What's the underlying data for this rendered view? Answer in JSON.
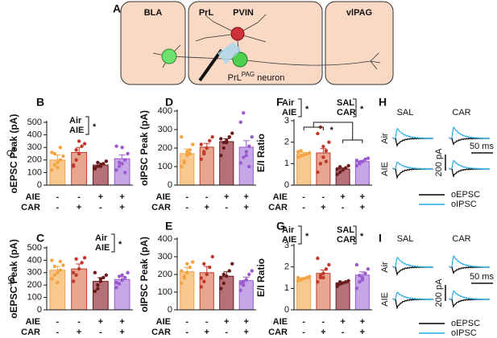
{
  "diagram": {
    "label": "A",
    "regions": [
      "BLA",
      "PrL",
      "vlPAG"
    ],
    "pvin": "PVIN",
    "neuron": "PrL",
    "neuron_sup": "PAG",
    "neuron_suffix": " neuron"
  },
  "sex_labels": [
    "♂",
    "♀"
  ],
  "chart_data": [
    {
      "type": "bar",
      "panel": "B",
      "ylabel": "oEPSC Peak (pA)",
      "ylim": [
        0,
        500
      ],
      "yticks": [
        0,
        100,
        200,
        300,
        400,
        500
      ],
      "rows": [
        {
          "name": "AIE",
          "signs": [
            "-",
            "-",
            "+",
            "+"
          ]
        },
        {
          "name": "CAR",
          "signs": [
            "-",
            "+",
            "-",
            "+"
          ]
        }
      ],
      "colors": [
        "#f8c98f",
        "#e8a58f",
        "#b5707a",
        "#c6a6e6"
      ],
      "point_colors": [
        "#f4a340",
        "#c0392b",
        "#6b1a1a",
        "#9b59d0"
      ],
      "values": [
        200,
        260,
        160,
        210
      ],
      "errors": [
        40,
        40,
        15,
        30
      ],
      "points": [
        [
          120,
          160,
          180,
          200,
          230,
          260,
          250,
          140,
          300
        ],
        [
          150,
          200,
          250,
          310,
          330,
          160,
          280,
          350
        ],
        [
          130,
          150,
          160,
          170,
          190,
          140,
          180,
          150
        ],
        [
          120,
          150,
          170,
          200,
          250,
          310,
          180,
          300,
          100
        ]
      ],
      "annotations": [
        {
          "lines": [
            "Air",
            "AIE"
          ],
          "mark": "*"
        }
      ]
    },
    {
      "type": "bar",
      "panel": "C",
      "ylabel": "oEPSC Peak (pA)",
      "ylim": [
        0,
        500
      ],
      "yticks": [
        0,
        100,
        200,
        300,
        400,
        500
      ],
      "rows": [
        {
          "name": "AIE",
          "signs": [
            "-",
            "-",
            "+",
            "+"
          ]
        },
        {
          "name": "CAR",
          "signs": [
            "-",
            "+",
            "-",
            "+"
          ]
        }
      ],
      "colors": [
        "#f8c98f",
        "#e8a58f",
        "#b5707a",
        "#c6a6e6"
      ],
      "point_colors": [
        "#f4a340",
        "#c0392b",
        "#6b1a1a",
        "#9b59d0"
      ],
      "values": [
        320,
        330,
        230,
        245
      ],
      "errors": [
        30,
        40,
        30,
        25
      ],
      "points": [
        [
          250,
          280,
          300,
          320,
          360,
          400,
          350,
          220,
          390
        ],
        [
          230,
          280,
          330,
          380,
          420,
          300,
          410
        ],
        [
          150,
          200,
          230,
          260,
          280,
          300,
          170,
          250
        ],
        [
          180,
          210,
          240,
          260,
          300,
          220,
          270,
          280
        ]
      ],
      "annotations": [
        {
          "lines": [
            "Air",
            "AIE"
          ],
          "mark": "*"
        }
      ]
    },
    {
      "type": "bar",
      "panel": "D",
      "ylabel": "oIPSC Peak (pA)",
      "ylim": [
        0,
        400
      ],
      "yticks": [
        0,
        100,
        200,
        300,
        400
      ],
      "rows": [
        {
          "name": "AIE",
          "signs": [
            "-",
            "-",
            "+",
            "+"
          ]
        },
        {
          "name": "CAR",
          "signs": [
            "-",
            "+",
            "-",
            "+"
          ]
        }
      ],
      "colors": [
        "#f8c98f",
        "#e8a58f",
        "#b5707a",
        "#c6a6e6"
      ],
      "point_colors": [
        "#f4a340",
        "#c0392b",
        "#6b1a1a",
        "#9b59d0"
      ],
      "values": [
        170,
        205,
        235,
        205
      ],
      "errors": [
        25,
        20,
        15,
        35
      ],
      "points": [
        [
          100,
          130,
          160,
          190,
          220,
          260,
          120,
          180,
          170
        ],
        [
          140,
          170,
          200,
          240,
          260,
          220,
          180
        ],
        [
          160,
          200,
          230,
          260,
          280,
          250,
          230,
          240
        ],
        [
          120,
          150,
          180,
          210,
          260,
          340,
          390,
          160,
          100
        ]
      ]
    },
    {
      "type": "bar",
      "panel": "E",
      "ylabel": "oIPSC Peak (pA)",
      "ylim": [
        0,
        400
      ],
      "yticks": [
        0,
        100,
        200,
        300,
        400
      ],
      "rows": [
        {
          "name": "AIE",
          "signs": [
            "-",
            "-",
            "+",
            "+"
          ]
        },
        {
          "name": "CAR",
          "signs": [
            "-",
            "+",
            "-",
            "+"
          ]
        }
      ],
      "colors": [
        "#f8c98f",
        "#e8a58f",
        "#b5707a",
        "#c6a6e6"
      ],
      "point_colors": [
        "#f4a340",
        "#c0392b",
        "#6b1a1a",
        "#9b59d0"
      ],
      "values": [
        215,
        210,
        190,
        165
      ],
      "errors": [
        25,
        35,
        25,
        20
      ],
      "points": [
        [
          150,
          180,
          210,
          240,
          270,
          220,
          190,
          260
        ],
        [
          130,
          160,
          200,
          240,
          300,
          180,
          260
        ],
        [
          120,
          150,
          190,
          220,
          260,
          180,
          200
        ],
        [
          110,
          140,
          170,
          200,
          220,
          150,
          160
        ]
      ]
    },
    {
      "type": "bar",
      "panel": "F",
      "ylabel": "E/I Ratio",
      "ylim": [
        0,
        3
      ],
      "yticks": [
        0,
        1,
        2,
        3
      ],
      "rows": [
        {
          "name": "AIE",
          "signs": [
            "-",
            "-",
            "+",
            "+"
          ]
        },
        {
          "name": "CAR",
          "signs": [
            "-",
            "+",
            "-",
            "+"
          ]
        }
      ],
      "colors": [
        "#f8c98f",
        "#e8a58f",
        "#b5707a",
        "#c6a6e6"
      ],
      "point_colors": [
        "#f4a340",
        "#c0392b",
        "#6b1a1a",
        "#9b59d0"
      ],
      "values": [
        1.45,
        1.5,
        0.75,
        1.1
      ],
      "errors": [
        0.07,
        0.2,
        0.05,
        0.05
      ],
      "points": [
        [
          1.3,
          1.35,
          1.4,
          1.45,
          1.5,
          1.55,
          1.6,
          1.4
        ],
        [
          0.6,
          1.0,
          1.3,
          1.6,
          2.0,
          2.4,
          2.7,
          1.8,
          1.1
        ],
        [
          0.5,
          0.6,
          0.7,
          0.8,
          0.9,
          0.75,
          0.85
        ],
        [
          0.9,
          1.0,
          1.1,
          1.2,
          1.25,
          1.15,
          1.05
        ]
      ],
      "annotations": [
        {
          "lines": [
            "Air",
            "AIE"
          ],
          "mark": "*"
        },
        {
          "lines": [
            "SAL",
            "CAR"
          ],
          "mark": "*"
        }
      ],
      "comparison_mark": "*"
    },
    {
      "type": "bar",
      "panel": "G",
      "ylabel": "E/I Ratio",
      "ylim": [
        0,
        3
      ],
      "yticks": [
        0,
        1,
        2,
        3
      ],
      "rows": [
        {
          "name": "AIE",
          "signs": [
            "-",
            "-",
            "+",
            "+"
          ]
        },
        {
          "name": "CAR",
          "signs": [
            "-",
            "+",
            "-",
            "+"
          ]
        }
      ],
      "colors": [
        "#f8c98f",
        "#e8a58f",
        "#b5707a",
        "#c6a6e6"
      ],
      "point_colors": [
        "#f4a340",
        "#c0392b",
        "#6b1a1a",
        "#9b59d0"
      ],
      "values": [
        1.45,
        1.7,
        1.25,
        1.62
      ],
      "errors": [
        0.05,
        0.15,
        0.05,
        0.15
      ],
      "points": [
        [
          1.35,
          1.4,
          1.45,
          1.5,
          1.55,
          1.5,
          1.4
        ],
        [
          1.3,
          1.5,
          1.7,
          1.9,
          2.1,
          2.4,
          1.6,
          1.5
        ],
        [
          1.1,
          1.2,
          1.25,
          1.3,
          1.35,
          1.2,
          1.3
        ],
        [
          1.0,
          1.3,
          1.5,
          1.7,
          1.9,
          2.1,
          1.6,
          1.4
        ]
      ],
      "annotations": [
        {
          "lines": [
            "Air",
            "AIE"
          ],
          "mark": "*"
        },
        {
          "lines": [
            "SAL",
            "CAR"
          ],
          "mark": "*"
        }
      ]
    }
  ],
  "traces": [
    {
      "panel": "H",
      "columns": [
        "SAL",
        "CAR"
      ],
      "rows": [
        "Air",
        "AIE"
      ],
      "scale_y": "200 pA",
      "scale_x": "50 ms",
      "legend": [
        {
          "name": "oEPSC",
          "color": "#000000"
        },
        {
          "name": "oIPSC",
          "color": "#29abe2"
        }
      ]
    },
    {
      "panel": "I",
      "columns": [
        "SAL",
        "CAR"
      ],
      "rows": [
        "Air",
        "AIE"
      ],
      "scale_y": "200 pA",
      "scale_x": "50 ms",
      "legend": [
        {
          "name": "oEPSC",
          "color": "#000000"
        },
        {
          "name": "oIPSC",
          "color": "#29abe2"
        }
      ]
    }
  ]
}
